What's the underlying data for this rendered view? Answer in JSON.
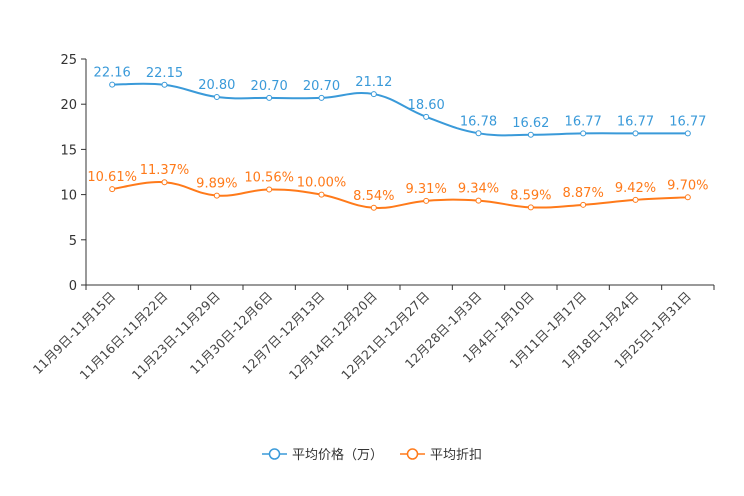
{
  "chart_data": {
    "type": "line",
    "smooth": true,
    "categories": [
      "11月9日-11月15日",
      "11月16日-11月22日",
      "11月23日-11月29日",
      "11月30日-12月6日",
      "12月7日-12月13日",
      "12月14日-12月20日",
      "12月21日-12月27日",
      "12月28日-1月3日",
      "1月4日-1月10日",
      "1月11日-1月17日",
      "1月18日-1月24日",
      "1月25日-1月31日"
    ],
    "series": [
      {
        "name": "平均价格（万）",
        "color": "#3a9ad9",
        "label_suffix": "",
        "values": [
          22.16,
          22.15,
          20.8,
          20.7,
          20.7,
          21.12,
          18.6,
          16.78,
          16.62,
          16.77,
          16.77,
          16.77
        ]
      },
      {
        "name": "平均折扣",
        "color": "#ff7a1a",
        "label_suffix": "%",
        "values": [
          10.61,
          11.37,
          9.89,
          10.56,
          10.0,
          8.54,
          9.31,
          9.34,
          8.59,
          8.87,
          9.42,
          9.7
        ]
      }
    ],
    "ylim": [
      0,
      25
    ],
    "yticks": [
      0,
      5,
      10,
      15,
      20,
      25
    ],
    "legend_position": "bottom-center",
    "grid": false
  }
}
